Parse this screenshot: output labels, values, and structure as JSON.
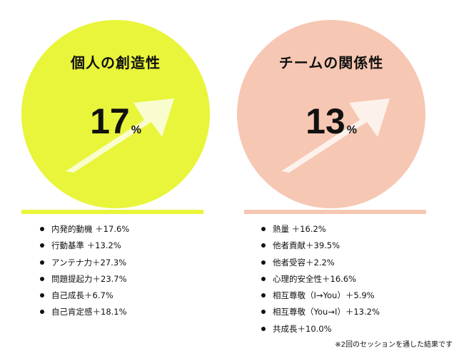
{
  "colors": {
    "creativity_circle": "#e8f53a",
    "relationship_circle": "#f6c7b2",
    "text": "#111111"
  },
  "creativity": {
    "title": "個人の創造性",
    "percent": "17",
    "unit": "%",
    "items": [
      "内発的動機 ＋17.6%",
      "行動基準 ＋13.2%",
      "アンテナ力＋27.3%",
      "問題提起力＋23.7%",
      "自己成長＋6.7%",
      "自己肯定感＋18.1%"
    ]
  },
  "relationship": {
    "title": "チームの関係性",
    "percent": "13",
    "unit": "%",
    "items": [
      "熱量 ＋16.2%",
      "他者貢献＋39.5%",
      "他者受容＋2.2%",
      "心理的安全性＋16.6%",
      "相互尊敬（I→You）＋5.9%",
      "相互尊敬（You→I）＋13.2%",
      "共成長＋10.0%"
    ]
  },
  "footnote": "※2回のセッションを通した結果です"
}
